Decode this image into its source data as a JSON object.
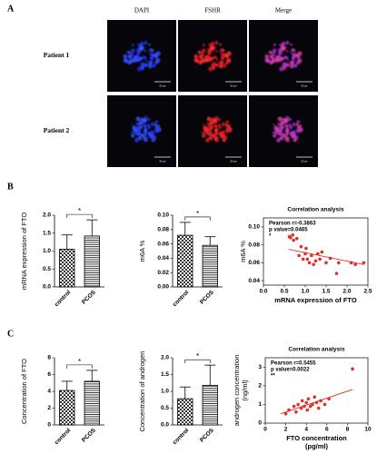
{
  "panel_labels": [
    "A",
    "B",
    "C"
  ],
  "microscopy": {
    "columns": [
      "DAPI",
      "FSHR",
      "Merge"
    ],
    "rows": [
      "Patient 1",
      "Patient 2"
    ],
    "scale_bar": "50 μm"
  },
  "chart_data": [
    {
      "type": "bar",
      "categories": [
        "control",
        "PCOS"
      ],
      "values": [
        1.05,
        1.42
      ],
      "errors": [
        0.4,
        0.45
      ],
      "ylabel": "mRNA expression of FTO",
      "ylim": [
        0,
        2
      ],
      "yticks": [
        {
          "value": 0,
          "label": "0.0"
        },
        0.5,
        {
          "value": 1,
          "label": "1.0"
        },
        1.5,
        {
          "value": 2,
          "label": "2.0"
        }
      ],
      "patterns": [
        "crosshatch",
        "horizontal"
      ],
      "color": "#000000",
      "significance": "*"
    },
    {
      "type": "bar",
      "categories": [
        "control",
        "PCOS"
      ],
      "values": [
        0.072,
        0.058
      ],
      "errors": [
        0.018,
        0.012
      ],
      "ylabel": "m6A %",
      "ylim": [
        0,
        0.1
      ],
      "yticks": [
        {
          "value": 0,
          "label": "0.00"
        },
        0.02,
        0.04,
        0.06,
        0.08,
        {
          "value": 0.1,
          "label": "0.10"
        }
      ],
      "patterns": [
        "crosshatch",
        "horizontal"
      ],
      "color": "#000000",
      "significance": "*"
    },
    {
      "type": "scatter",
      "title": "Correlation analysis",
      "xlabel": "mRNA expression of FTO",
      "ylabel": "m6A %",
      "annotations": [
        "Pearson r=-0.3863",
        "p value=0.0465",
        "*"
      ],
      "x": [
        0.62,
        0.65,
        0.7,
        0.72,
        0.8,
        0.85,
        0.9,
        0.95,
        1.0,
        1.02,
        1.05,
        1.1,
        1.15,
        1.2,
        1.25,
        1.3,
        1.35,
        1.4,
        1.5,
        1.6,
        1.75,
        1.8,
        2.1,
        2.2,
        2.4
      ],
      "values": [
        0.089,
        0.088,
        0.091,
        0.085,
        0.087,
        0.068,
        0.078,
        0.064,
        0.07,
        0.076,
        0.064,
        0.06,
        0.068,
        0.058,
        0.062,
        0.07,
        0.064,
        0.072,
        0.06,
        0.065,
        0.048,
        0.06,
        0.06,
        0.058,
        0.06
      ],
      "trend": {
        "x": [
          0.6,
          2.4
        ],
        "y": [
          0.075,
          0.058
        ]
      },
      "color": "#e0302a",
      "xlim": [
        0,
        2.5
      ],
      "ylim": [
        0.035,
        0.11
      ],
      "xticks": [
        {
          "value": 0,
          "label": "0.0"
        },
        0.5,
        {
          "value": 1,
          "label": "1.0"
        },
        1.5,
        {
          "value": 2,
          "label": "2.0"
        },
        2.5
      ],
      "yticks": [
        0.04,
        0.06,
        0.08,
        {
          "value": 0.1,
          "label": "0.10"
        }
      ]
    },
    {
      "type": "bar",
      "categories": [
        "control",
        "PCOS"
      ],
      "values": [
        4.1,
        5.2
      ],
      "errors": [
        1.1,
        1.3
      ],
      "ylabel": "Concentration of FTO",
      "ylim": [
        0,
        8
      ],
      "yticks": [
        0,
        2,
        4,
        6,
        8
      ],
      "patterns": [
        "crosshatch",
        "horizontal"
      ],
      "color": "#000000",
      "significance": "*"
    },
    {
      "type": "bar",
      "categories": [
        "control",
        "PCOS"
      ],
      "values": [
        0.78,
        1.18
      ],
      "errors": [
        0.35,
        0.6
      ],
      "ylabel": "Concentration of androgen",
      "ylim": [
        0,
        2
      ],
      "yticks": [
        {
          "value": 0,
          "label": "0.0"
        },
        0.5,
        {
          "value": 1,
          "label": "1.0"
        },
        1.5,
        {
          "value": 2,
          "label": "2.0"
        }
      ],
      "patterns": [
        "crosshatch",
        "horizontal"
      ],
      "color": "#000000",
      "significance": "*"
    },
    {
      "type": "scatter",
      "title": "Correlation analysis",
      "xlabel": [
        "FTO concentration",
        "(pg/ml)"
      ],
      "ylabel": [
        "androgen concentration",
        "(ng/ml)"
      ],
      "annotations": [
        "Pearson r=0.5455",
        "p value=0.0022",
        "**"
      ],
      "x": [
        2.0,
        2.3,
        2.8,
        3.0,
        3.2,
        3.5,
        3.6,
        3.8,
        4.0,
        4.1,
        4.2,
        4.4,
        4.6,
        4.8,
        5.0,
        5.2,
        5.4,
        5.8,
        6.2,
        8.5
      ],
      "values": [
        0.5,
        0.7,
        0.9,
        0.6,
        1.0,
        0.8,
        1.2,
        0.9,
        1.1,
        0.7,
        1.3,
        0.9,
        1.0,
        1.4,
        1.1,
        0.8,
        1.2,
        1.0,
        1.3,
        2.9
      ],
      "trend": {
        "x": [
          1.5,
          8.5
        ],
        "y": [
          0.5,
          1.8
        ]
      },
      "color": "#e0302a",
      "xlim": [
        0,
        10
      ],
      "ylim": [
        0,
        3.5
      ],
      "xticks": [
        0,
        2,
        4,
        6,
        8,
        10
      ],
      "yticks": [
        0,
        1,
        2,
        3
      ]
    }
  ]
}
